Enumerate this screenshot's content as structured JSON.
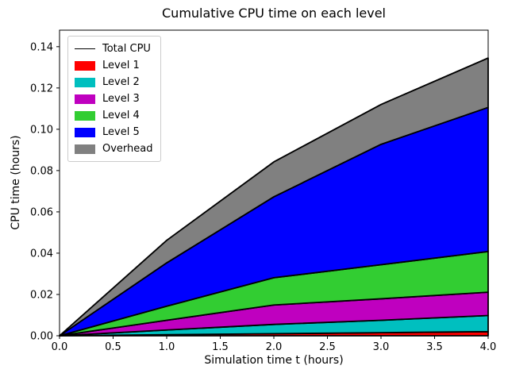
{
  "title": "Cumulative CPU time on each level",
  "xlabel": "Simulation time t (hours)",
  "ylabel": "CPU time (hours)",
  "chart_data": {
    "type": "area",
    "stacked": true,
    "title": "Cumulative CPU time on each level",
    "xlabel": "Simulation time t (hours)",
    "ylabel": "CPU time (hours)",
    "x": [
      0,
      1,
      2,
      3,
      4
    ],
    "series": [
      {
        "name": "Level 1",
        "color": "#ff0000",
        "values": [
          0,
          0.0005,
          0.001,
          0.0015,
          0.002
        ]
      },
      {
        "name": "Level 2",
        "color": "#00bfbf",
        "values": [
          0,
          0.0023,
          0.0045,
          0.006,
          0.0078
        ]
      },
      {
        "name": "Level 3",
        "color": "#bf00bf",
        "values": [
          0,
          0.0047,
          0.0094,
          0.0104,
          0.0113
        ]
      },
      {
        "name": "Level 4",
        "color": "#32cd32",
        "values": [
          0,
          0.0068,
          0.0132,
          0.0165,
          0.0197
        ]
      },
      {
        "name": "Level 5",
        "color": "#0000ff",
        "values": [
          0,
          0.021,
          0.0392,
          0.0583,
          0.0698
        ]
      },
      {
        "name": "Overhead",
        "color": "#808080",
        "values": [
          0,
          0.0109,
          0.0169,
          0.0193,
          0.0239
        ]
      }
    ],
    "total_line": {
      "name": "Total CPU",
      "color": "#000000",
      "values": [
        0,
        0.0462,
        0.0842,
        0.112,
        0.1345
      ]
    },
    "xlim": [
      0,
      4
    ],
    "ylim": [
      0,
      0.148
    ],
    "xticks": [
      0.0,
      0.5,
      1.0,
      1.5,
      2.0,
      2.5,
      3.0,
      3.5,
      4.0
    ],
    "xtick_labels": [
      "0.0",
      "0.5",
      "1.0",
      "1.5",
      "2.0",
      "2.5",
      "3.0",
      "3.5",
      "4.0"
    ],
    "yticks": [
      0.0,
      0.02,
      0.04,
      0.06,
      0.08,
      0.1,
      0.12,
      0.14
    ],
    "ytick_labels": [
      "0.00",
      "0.02",
      "0.04",
      "0.06",
      "0.08",
      "0.10",
      "0.12",
      "0.14"
    ],
    "grid": false,
    "legend": {
      "position": "upper left",
      "entries": [
        {
          "label": "Total CPU",
          "swatch": "line",
          "color": "#000000"
        },
        {
          "label": "Level 1",
          "swatch": "patch",
          "color": "#ff0000"
        },
        {
          "label": "Level 2",
          "swatch": "patch",
          "color": "#00bfbf"
        },
        {
          "label": "Level 3",
          "swatch": "patch",
          "color": "#bf00bf"
        },
        {
          "label": "Level 4",
          "swatch": "patch",
          "color": "#32cd32"
        },
        {
          "label": "Level 5",
          "swatch": "patch",
          "color": "#0000ff"
        },
        {
          "label": "Overhead",
          "swatch": "patch",
          "color": "#808080"
        }
      ]
    }
  }
}
